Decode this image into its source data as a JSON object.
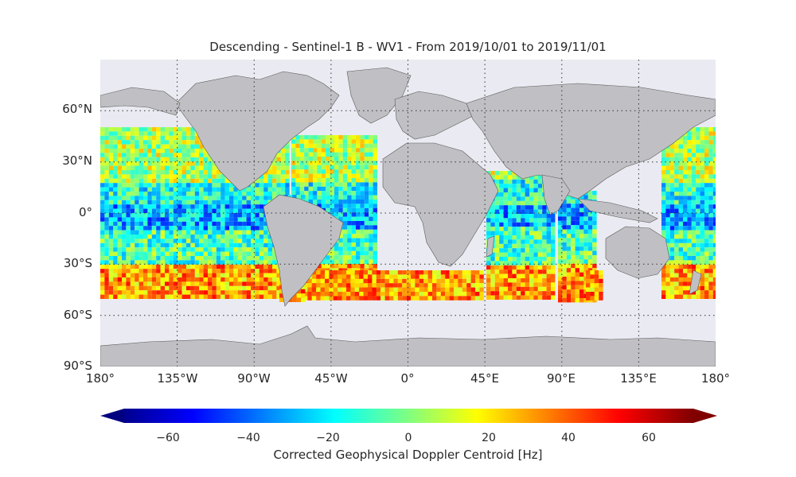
{
  "title": "Descending - Sentinel-1 B - WV1 - From 2019/10/01 to 2019/11/01",
  "lat_labels": [
    "60°N",
    "30°N",
    "0°",
    "30°S",
    "60°S",
    "90°S"
  ],
  "lon_labels": [
    "180°",
    "135°W",
    "90°W",
    "45°W",
    "0°",
    "45°E",
    "90°E",
    "135°E",
    "180°"
  ],
  "colorbar": {
    "label": "Corrected Geophysical Doppler Centroid [Hz]",
    "ticks": [
      "−60",
      "−40",
      "−20",
      "0",
      "20",
      "40",
      "60"
    ],
    "range": [
      -70,
      70
    ],
    "colormap": "jet",
    "extend": "both"
  },
  "colors": {
    "ocean_background": "#eaeaf2",
    "land": "#c0c0c4",
    "coastline": "#4a4a4a",
    "gridline": "#333333"
  }
}
